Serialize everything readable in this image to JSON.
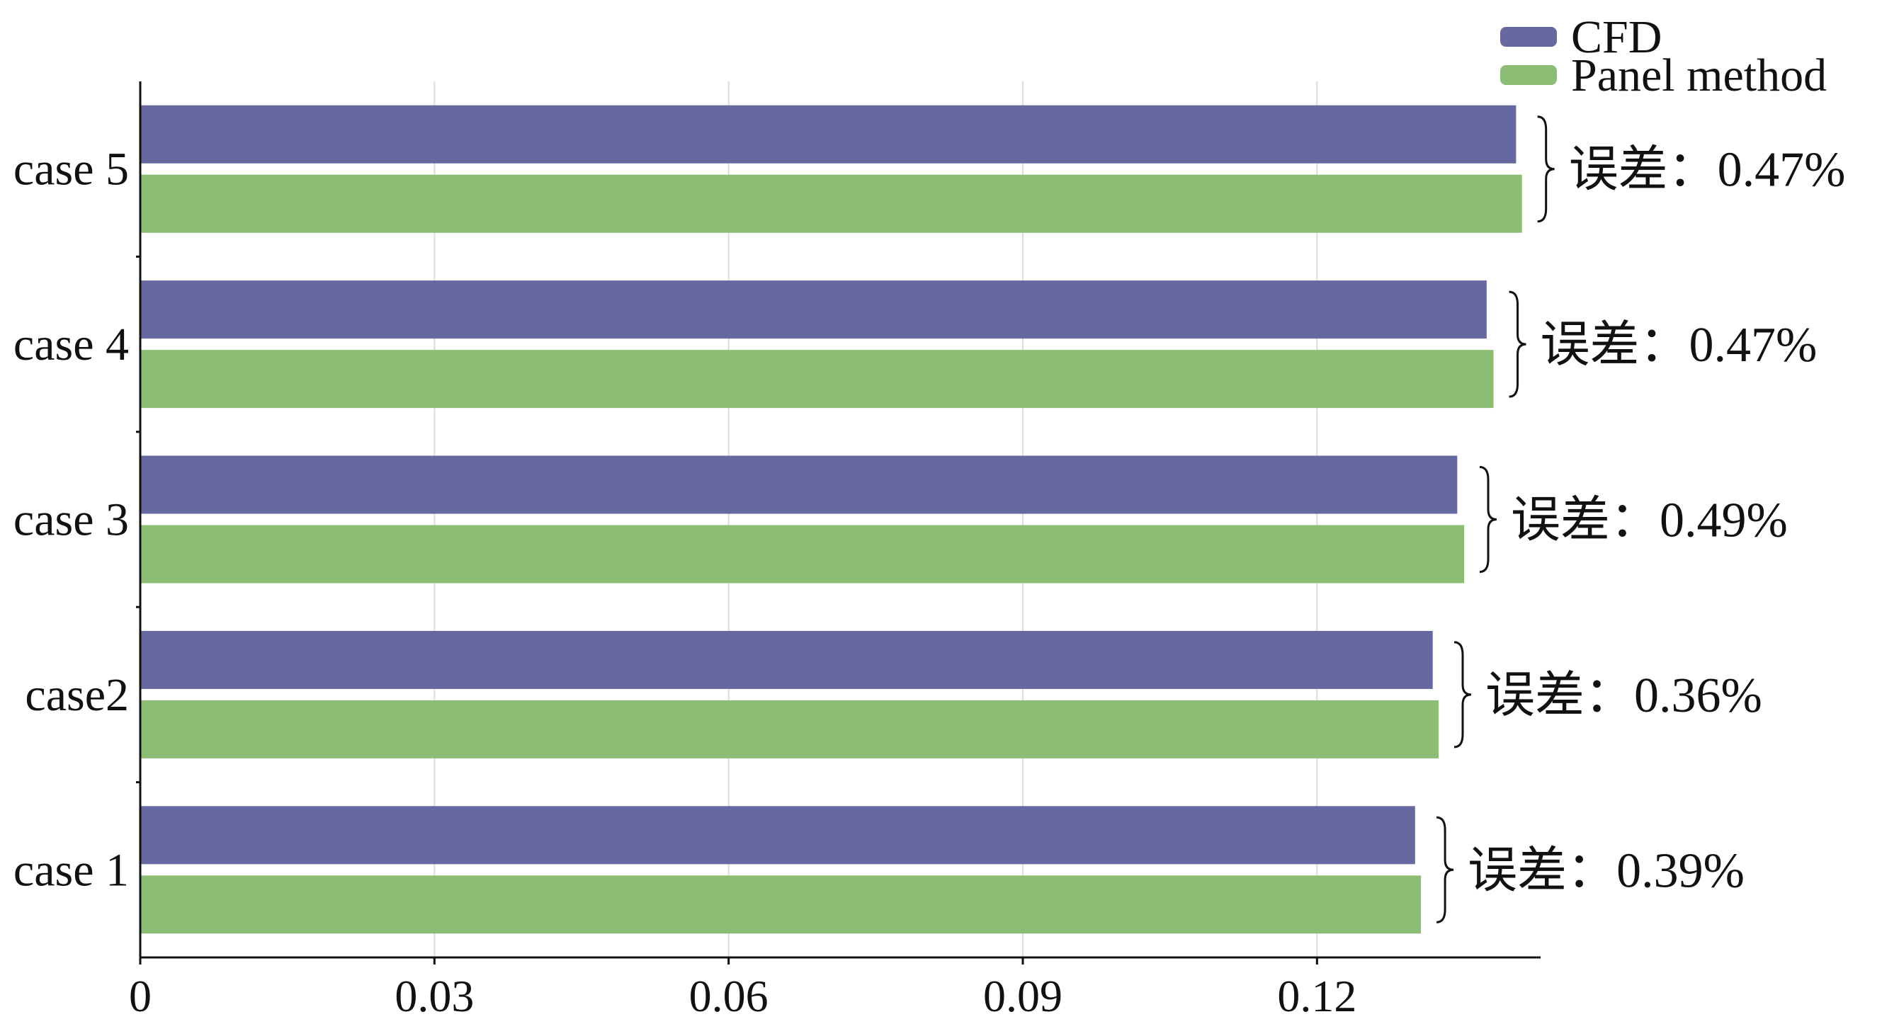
{
  "chart_data": {
    "type": "bar",
    "orientation": "horizontal",
    "categories": [
      "case 1",
      "case2",
      "case 3",
      "case 4",
      "case 5"
    ],
    "series": [
      {
        "name": "CFD",
        "values": [
          0.13,
          0.1318,
          0.1343,
          0.1373,
          0.1403
        ],
        "color": "#6569a0"
      },
      {
        "name": "Panel method",
        "values": [
          0.1306,
          0.1324,
          0.135,
          0.138,
          0.1409
        ],
        "color": "#8cbd74"
      }
    ],
    "annotations": [
      "误差：0.39%",
      "误差：0.36%",
      "误差：0.49%",
      "误差：0.47%",
      "误差：0.47%"
    ],
    "xticks": [
      0,
      0.03,
      0.06,
      0.09,
      0.12
    ],
    "xtick_labels": [
      "0",
      "0.03",
      "0.06",
      "0.09",
      "0.12"
    ],
    "xlim": [
      0,
      0.1428
    ],
    "grid": true,
    "legend": "top-right"
  }
}
